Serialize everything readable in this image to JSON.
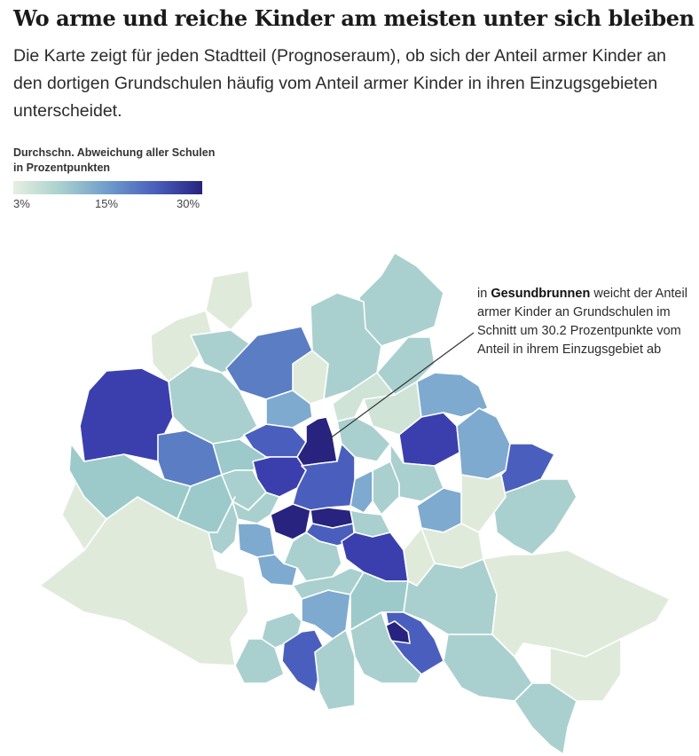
{
  "title": "Wo arme und reiche Kinder am meisten unter sich bleiben",
  "subtitle": "Die Karte zeigt für jeden Stadtteil (Prognoseraum), ob sich der Anteil armer Kinder an den dortigen Grundschulen häufig vom Anteil armer Kinder in ihren Einzugsgebieten unterscheidet.",
  "legend": {
    "title": "Durchschn. Abweichung aller Schulen in Prozentpunkten",
    "ticks": [
      "3%",
      "15%",
      "30%"
    ],
    "colors": [
      "#e6efe0",
      "#a9d0ce",
      "#6f9ccb",
      "#4a5fbd",
      "#27237e"
    ]
  },
  "annotation": {
    "prefix": "in",
    "highlight": "Gesundbrunnen",
    "rest": "weicht der Anteil armer Kinder an Grundschulen im Schnitt um 30.2 Prozentpunkte vom Anteil in ihrem Einzugsgebiet ab",
    "value": 30.2
  }
}
